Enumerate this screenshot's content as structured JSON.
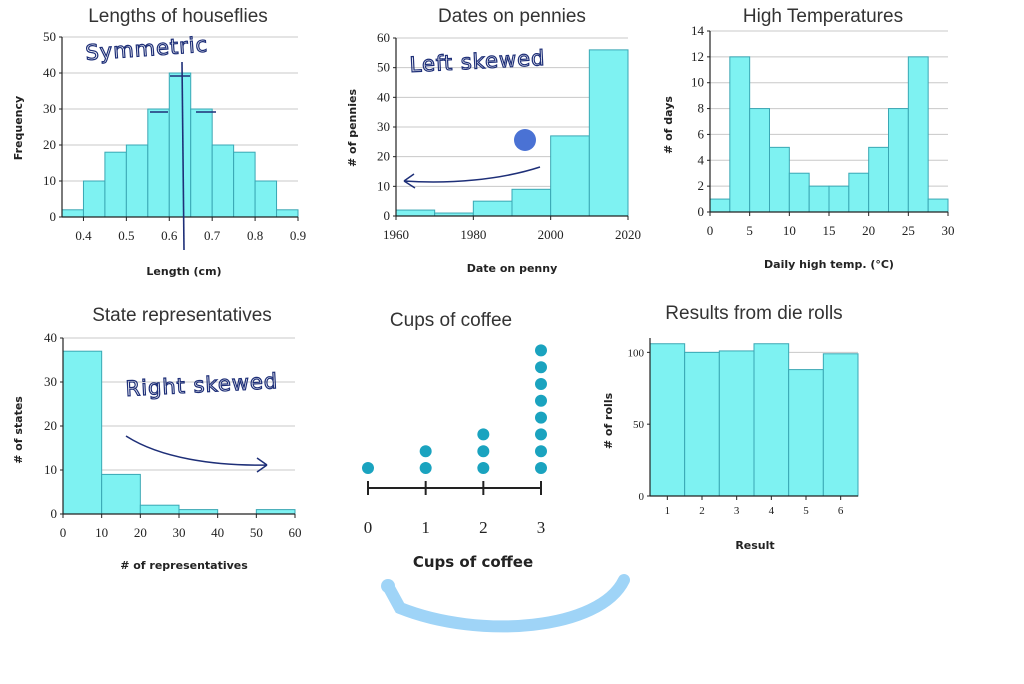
{
  "colors": {
    "bar_fill": "#7ef2f2",
    "bar_stroke": "#3aa7b4",
    "grid": "#c8c8c8",
    "axis": "#222222",
    "dot": "#1aa3bf",
    "ink": "#1e2f78",
    "marker": "#4a72d4",
    "refresh_arc": "#9fd4f7"
  },
  "decorations": {
    "refresh_arc_icon": "refresh-arrow-icon",
    "annotation_marker": "circle"
  },
  "chart_data": [
    {
      "id": "houseflies",
      "type": "bar",
      "title": "Lengths of houseflies",
      "xlabel": "Length (cm)",
      "ylabel": "Frequency",
      "bins": [
        [
          0.35,
          0.4
        ],
        [
          0.4,
          0.45
        ],
        [
          0.45,
          0.5
        ],
        [
          0.5,
          0.55
        ],
        [
          0.55,
          0.6
        ],
        [
          0.6,
          0.65
        ],
        [
          0.65,
          0.7
        ],
        [
          0.7,
          0.75
        ],
        [
          0.75,
          0.8
        ],
        [
          0.8,
          0.85
        ],
        [
          0.85,
          0.9
        ]
      ],
      "values": [
        2,
        10,
        18,
        20,
        30,
        40,
        30,
        20,
        18,
        10,
        2
      ],
      "xlim": [
        0.35,
        0.9
      ],
      "ylim": [
        0,
        50
      ],
      "xticks": [
        0.4,
        0.5,
        0.6,
        0.7,
        0.8,
        0.9
      ],
      "xtick_labels": [
        "0.4",
        "0.5",
        "0.6",
        "0.7",
        "0.8",
        "0.9"
      ],
      "yticks": [
        0,
        10,
        20,
        30,
        40,
        50
      ],
      "ytick_labels": [
        "0",
        "10",
        "20",
        "30",
        "40",
        "50"
      ],
      "grid": true,
      "annotation": "Symmetric"
    },
    {
      "id": "pennies",
      "type": "bar",
      "title": "Dates on pennies",
      "xlabel": "Date on penny",
      "ylabel": "# of pennies",
      "bins": [
        [
          1960,
          1970
        ],
        [
          1970,
          1980
        ],
        [
          1980,
          1990
        ],
        [
          1990,
          2000
        ],
        [
          2000,
          2010
        ],
        [
          2010,
          2020
        ]
      ],
      "values": [
        2,
        1,
        5,
        9,
        27,
        56
      ],
      "xlim": [
        1960,
        2020
      ],
      "ylim": [
        0,
        60
      ],
      "xticks": [
        1960,
        1980,
        2000,
        2020
      ],
      "xtick_labels": [
        "1960",
        "1980",
        "2000",
        "2020"
      ],
      "yticks": [
        0,
        10,
        20,
        30,
        40,
        50,
        60
      ],
      "ytick_labels": [
        "0",
        "10",
        "20",
        "30",
        "40",
        "50",
        "60"
      ],
      "grid": true,
      "annotation": "Left skewed"
    },
    {
      "id": "temperatures",
      "type": "bar",
      "title": "High Temperatures",
      "xlabel": "Daily high temp. (°C)",
      "ylabel": "# of days",
      "bins": [
        [
          0,
          2.5
        ],
        [
          2.5,
          5
        ],
        [
          5,
          7.5
        ],
        [
          7.5,
          10
        ],
        [
          10,
          12.5
        ],
        [
          12.5,
          15
        ],
        [
          15,
          17.5
        ],
        [
          17.5,
          20
        ],
        [
          20,
          22.5
        ],
        [
          22.5,
          25
        ],
        [
          25,
          27.5
        ],
        [
          27.5,
          30
        ]
      ],
      "values": [
        1,
        12,
        8,
        5,
        3,
        2,
        2,
        3,
        5,
        8,
        12,
        1
      ],
      "xlim": [
        0,
        30
      ],
      "ylim": [
        0,
        14
      ],
      "xticks": [
        0,
        5,
        10,
        15,
        20,
        25,
        30
      ],
      "xtick_labels": [
        "0",
        "5",
        "10",
        "15",
        "20",
        "25",
        "30"
      ],
      "yticks": [
        0,
        2,
        4,
        6,
        8,
        10,
        12,
        14
      ],
      "ytick_labels": [
        "0",
        "2",
        "4",
        "6",
        "8",
        "10",
        "12",
        "14"
      ],
      "grid": true
    },
    {
      "id": "representatives",
      "type": "bar",
      "title": "State representatives",
      "xlabel": "# of representatives",
      "ylabel": "# of states",
      "bins": [
        [
          0,
          10
        ],
        [
          10,
          20
        ],
        [
          20,
          30
        ],
        [
          30,
          40
        ],
        [
          40,
          50
        ],
        [
          50,
          60
        ]
      ],
      "values": [
        37,
        9,
        2,
        1,
        0,
        1
      ],
      "xlim": [
        0,
        60
      ],
      "ylim": [
        0,
        40
      ],
      "xticks": [
        0,
        10,
        20,
        30,
        40,
        50,
        60
      ],
      "xtick_labels": [
        "0",
        "10",
        "20",
        "30",
        "40",
        "50",
        "60"
      ],
      "yticks": [
        0,
        10,
        20,
        30,
        40
      ],
      "ytick_labels": [
        "0",
        "10",
        "20",
        "30",
        "40"
      ],
      "grid": true,
      "annotation": "Right skewed"
    },
    {
      "id": "coffee",
      "type": "scatter",
      "title": "Cups of coffee",
      "xlabel": "Cups of coffee",
      "categories": [
        "0",
        "1",
        "2",
        "3"
      ],
      "counts": [
        1,
        2,
        3,
        8
      ],
      "xlim": [
        0,
        3
      ],
      "grid": false
    },
    {
      "id": "dice",
      "type": "bar",
      "title": "Results from die rolls",
      "xlabel": "Result",
      "ylabel": "# of rolls",
      "bins": [
        [
          0.5,
          1.5
        ],
        [
          1.5,
          2.5
        ],
        [
          2.5,
          3.5
        ],
        [
          3.5,
          4.5
        ],
        [
          4.5,
          5.5
        ],
        [
          5.5,
          6.5
        ]
      ],
      "values": [
        106,
        100,
        101,
        106,
        88,
        99
      ],
      "xlim": [
        0.5,
        6.5
      ],
      "ylim": [
        0,
        110
      ],
      "xticks": [
        1,
        2,
        3,
        4,
        5,
        6
      ],
      "xtick_labels": [
        "1",
        "2",
        "3",
        "4",
        "5",
        "6"
      ],
      "yticks": [
        0,
        50,
        100
      ],
      "ytick_labels": [
        "0",
        "50",
        "100"
      ],
      "grid": true
    }
  ]
}
